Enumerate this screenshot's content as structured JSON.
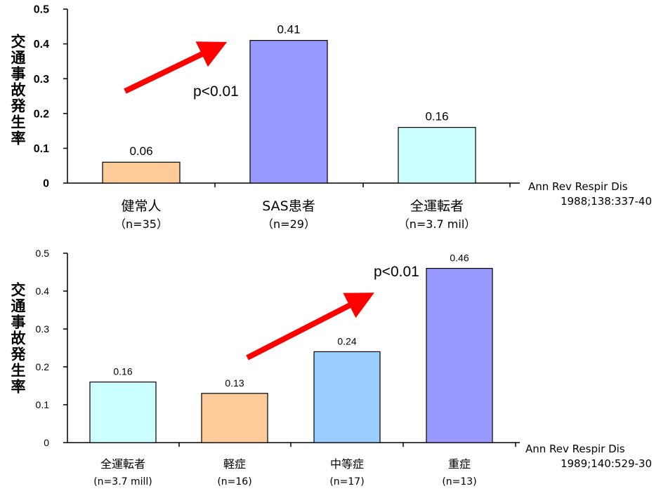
{
  "chart_data": [
    {
      "type": "bar",
      "ylabel": "交通事故発生率",
      "ylim": [
        0,
        0.5
      ],
      "yticks": [
        "0",
        "0.1",
        "0.2",
        "0.3",
        "0.4",
        "0.5"
      ],
      "categories": [
        "健常人",
        "SAS患者",
        "全運転者"
      ],
      "sublabels": [
        "（n=35）",
        "（n=29）",
        "（n=3.7 mil）"
      ],
      "values": [
        0.06,
        0.41,
        0.16
      ],
      "data_labels": [
        "0.06",
        "0.41",
        "0.16"
      ],
      "colors": [
        "#fccb99",
        "#9999ff",
        "#ccffff"
      ],
      "annotation": "p<0.01",
      "reference": [
        "Ann Rev Respir Dis",
        "1988;138:337-40"
      ]
    },
    {
      "type": "bar",
      "ylabel": "交通事故発生率",
      "ylim": [
        0,
        0.5
      ],
      "yticks": [
        "0",
        "0.1",
        "0.2",
        "0.3",
        "0.4",
        "0.5"
      ],
      "categories": [
        "全運転者",
        "軽症",
        "中等症",
        "重症"
      ],
      "sublabels": [
        "(n=3.7 mill)",
        "(n=16)",
        "(n=17)",
        "(n=13)"
      ],
      "values": [
        0.16,
        0.13,
        0.24,
        0.46
      ],
      "data_labels": [
        "0.16",
        "0.13",
        "0.24",
        "0.46"
      ],
      "colors": [
        "#ccffff",
        "#fccb99",
        "#99ccff",
        "#9999ff"
      ],
      "annotation": "p<0.01",
      "reference": [
        "Ann Rev Respir Dis",
        "1989;140:529-30"
      ]
    }
  ]
}
